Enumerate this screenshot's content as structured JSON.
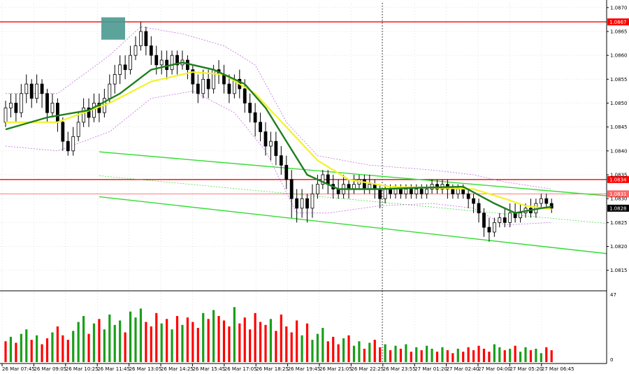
{
  "chart_data": {
    "type": "candlestick",
    "title": "",
    "price_axis": {
      "ticks": [
        "1.0870",
        "1.0865",
        "1.0860",
        "1.0855",
        "1.0850",
        "1.0845",
        "1.0840",
        "1.0835",
        "1.0830",
        "1.0825",
        "1.0820",
        "1.0815"
      ],
      "range": [
        1.0811,
        1.0871
      ]
    },
    "time_axis": {
      "labels": [
        "26 Mar 07:45",
        "26 Mar 09:05",
        "26 Mar 10:25",
        "26 Mar 11:45",
        "26 Mar 13:05",
        "26 Mar 14:25",
        "26 Mar 15:45",
        "26 Mar 17:05",
        "26 Mar 18:25",
        "26 Mar 19:45",
        "26 Mar 21:05",
        "26 Mar 22:25",
        "26 Mar 23:55",
        "27 Mar 01:20",
        "27 Mar 02:40",
        "27 Mar 04:00",
        "27 Mar 05:20",
        "27 Mar 06:45"
      ]
    },
    "horizontal_levels": [
      {
        "value": 1.0867,
        "label": "1.0867",
        "color": "#ff0000"
      },
      {
        "value": 1.0834,
        "label": "1.0834",
        "color": "#ff0000"
      },
      {
        "value": 1.0831,
        "label": "1.0831",
        "color": "#ff6666"
      }
    ],
    "current_price": {
      "value": 1.0828,
      "label": "1.0828"
    },
    "volume_axis": {
      "ticks": [
        "47",
        "0"
      ],
      "max": 47
    },
    "colors": {
      "bull_volume": "#1a9e1a",
      "bear_volume": "#ff0000",
      "ma_fast": "#1e7f1e",
      "ma_slow": "#f2f22a",
      "channel": "#33dd33",
      "envelope": "#c070e0",
      "marker": "#4a9a90"
    },
    "channel": {
      "upper": [
        {
          "t": 18,
          "v": 1.08398
        },
        {
          "t": 141,
          "v": 1.08306
        }
      ],
      "lower": [
        {
          "t": 18,
          "v": 1.08304
        },
        {
          "t": 141,
          "v": 1.08185
        }
      ],
      "mid_dotted": [
        {
          "t": 18,
          "v": 1.08348
        },
        {
          "t": 141,
          "v": 1.08248
        }
      ]
    },
    "candles": [
      [
        1.0846,
        1.0849,
        1.0845,
        1.08505
      ],
      [
        1.0849,
        1.085,
        1.0847,
        1.0852
      ],
      [
        1.085,
        1.0848,
        1.0846,
        1.0852
      ],
      [
        1.0848,
        1.0852,
        1.0847,
        1.0854
      ],
      [
        1.0852,
        1.0854,
        1.085,
        1.0856
      ],
      [
        1.0854,
        1.0851,
        1.0849,
        1.0855
      ],
      [
        1.0851,
        1.0854,
        1.085,
        1.0856
      ],
      [
        1.0854,
        1.0852,
        1.0849,
        1.0855
      ],
      [
        1.0852,
        1.0848,
        1.0846,
        1.0853
      ],
      [
        1.0848,
        1.085,
        1.0847,
        1.0852
      ],
      [
        1.085,
        1.0846,
        1.0844,
        1.0851
      ],
      [
        1.0846,
        1.0842,
        1.084,
        1.0847
      ],
      [
        1.0842,
        1.084,
        1.0839,
        1.0844
      ],
      [
        1.084,
        1.0843,
        1.0839,
        1.0845
      ],
      [
        1.0843,
        1.0846,
        1.0842,
        1.0848
      ],
      [
        1.0846,
        1.0849,
        1.0845,
        1.0851
      ],
      [
        1.0849,
        1.0847,
        1.0845,
        1.0851
      ],
      [
        1.0847,
        1.085,
        1.0846,
        1.0852
      ],
      [
        1.085,
        1.0848,
        1.0846,
        1.0852
      ],
      [
        1.0848,
        1.0851,
        1.0847,
        1.0853
      ],
      [
        1.0851,
        1.0854,
        1.085,
        1.0856
      ],
      [
        1.0854,
        1.0856,
        1.0852,
        1.0858
      ],
      [
        1.0856,
        1.0858,
        1.0854,
        1.086
      ],
      [
        1.0858,
        1.0857,
        1.0855,
        1.086
      ],
      [
        1.0857,
        1.086,
        1.0856,
        1.0862
      ],
      [
        1.086,
        1.0862,
        1.0859,
        1.0864
      ],
      [
        1.0862,
        1.0865,
        1.0861,
        1.0867
      ],
      [
        1.0865,
        1.0862,
        1.086,
        1.0866
      ],
      [
        1.0862,
        1.086,
        1.0858,
        1.0864
      ],
      [
        1.086,
        1.0858,
        1.0856,
        1.0862
      ],
      [
        1.0858,
        1.0859,
        1.0856,
        1.0861
      ],
      [
        1.0859,
        1.0857,
        1.0855,
        1.0861
      ],
      [
        1.0857,
        1.086,
        1.0856,
        1.0861
      ],
      [
        1.086,
        1.0858,
        1.0856,
        1.0861
      ],
      [
        1.0858,
        1.0859,
        1.0857,
        1.0861
      ],
      [
        1.0859,
        1.0857,
        1.0855,
        1.086
      ],
      [
        1.0857,
        1.0854,
        1.0852,
        1.0858
      ],
      [
        1.0854,
        1.0852,
        1.085,
        1.0856
      ],
      [
        1.0852,
        1.0855,
        1.0851,
        1.0857
      ],
      [
        1.0855,
        1.0853,
        1.0851,
        1.0857
      ],
      [
        1.0853,
        1.0857,
        1.0852,
        1.0858
      ],
      [
        1.0857,
        1.0856,
        1.0854,
        1.0859
      ],
      [
        1.0856,
        1.0854,
        1.0852,
        1.0858
      ],
      [
        1.0854,
        1.0852,
        1.085,
        1.0856
      ],
      [
        1.0852,
        1.0855,
        1.0851,
        1.0856
      ],
      [
        1.0855,
        1.0853,
        1.0851,
        1.0857
      ],
      [
        1.0853,
        1.085,
        1.0848,
        1.0855
      ],
      [
        1.085,
        1.0848,
        1.0846,
        1.0852
      ],
      [
        1.0848,
        1.0846,
        1.0843,
        1.085
      ],
      [
        1.0846,
        1.0844,
        1.0842,
        1.0848
      ],
      [
        1.0844,
        1.0841,
        1.0839,
        1.0846
      ],
      [
        1.0841,
        1.0842,
        1.0838,
        1.0844
      ],
      [
        1.0842,
        1.0839,
        1.0837,
        1.0844
      ],
      [
        1.0839,
        1.0837,
        1.0835,
        1.0841
      ],
      [
        1.0837,
        1.0834,
        1.0832,
        1.0839
      ],
      [
        1.0834,
        1.083,
        1.0826,
        1.0836
      ],
      [
        1.083,
        1.0828,
        1.0825,
        1.0832
      ],
      [
        1.0828,
        1.083,
        1.0826,
        1.0832
      ],
      [
        1.083,
        1.0828,
        1.0825,
        1.0831
      ],
      [
        1.0828,
        1.0831,
        1.0826,
        1.0833
      ],
      [
        1.0831,
        1.0833,
        1.083,
        1.0835
      ],
      [
        1.0833,
        1.0835,
        1.0832,
        1.0836
      ],
      [
        1.0835,
        1.0833,
        1.0831,
        1.0836
      ],
      [
        1.0833,
        1.0832,
        1.083,
        1.0835
      ],
      [
        1.0832,
        1.0831,
        1.083,
        1.0834
      ],
      [
        1.0831,
        1.0833,
        1.083,
        1.0835
      ],
      [
        1.0833,
        1.0832,
        1.083,
        1.0834
      ],
      [
        1.0832,
        1.0833,
        1.0831,
        1.0835
      ],
      [
        1.0833,
        1.0834,
        1.0832,
        1.0835
      ],
      [
        1.0834,
        1.0832,
        1.0831,
        1.0835
      ],
      [
        1.0832,
        1.0833,
        1.0831,
        1.0835
      ],
      [
        1.0833,
        1.0832,
        1.083,
        1.0834
      ],
      [
        1.0832,
        1.083,
        1.0828,
        1.0833
      ],
      [
        1.083,
        1.0832,
        1.0829,
        1.0833
      ],
      [
        1.0832,
        1.0831,
        1.083,
        1.0833
      ],
      [
        1.0831,
        1.0832,
        1.083,
        1.0833
      ],
      [
        1.0832,
        1.0831,
        1.083,
        1.0833
      ],
      [
        1.0831,
        1.0832,
        1.083,
        1.0833
      ],
      [
        1.0832,
        1.0831,
        1.083,
        1.0833
      ],
      [
        1.0831,
        1.0832,
        1.083,
        1.0833
      ],
      [
        1.0832,
        1.0831,
        1.083,
        1.0833
      ],
      [
        1.0831,
        1.0832,
        1.083,
        1.0833
      ],
      [
        1.0832,
        1.0833,
        1.0831,
        1.0834
      ],
      [
        1.0833,
        1.0832,
        1.0831,
        1.0834
      ],
      [
        1.0832,
        1.0833,
        1.0831,
        1.0834
      ],
      [
        1.0833,
        1.0832,
        1.083,
        1.0834
      ],
      [
        1.0832,
        1.0831,
        1.083,
        1.0833
      ],
      [
        1.0831,
        1.0832,
        1.083,
        1.0833
      ],
      [
        1.0832,
        1.0831,
        1.083,
        1.0833
      ],
      [
        1.0831,
        1.083,
        1.0828,
        1.0832
      ],
      [
        1.083,
        1.0829,
        1.0827,
        1.0831
      ],
      [
        1.0829,
        1.0827,
        1.0825,
        1.083
      ],
      [
        1.0827,
        1.0824,
        1.0822,
        1.0828
      ],
      [
        1.0824,
        1.0823,
        1.0821,
        1.0826
      ],
      [
        1.0823,
        1.0825,
        1.0822,
        1.0826
      ],
      [
        1.0825,
        1.0826,
        1.0824,
        1.0827
      ],
      [
        1.0826,
        1.0825,
        1.0824,
        1.0828
      ],
      [
        1.0825,
        1.0827,
        1.0824,
        1.0829
      ],
      [
        1.0827,
        1.0826,
        1.0825,
        1.0829
      ],
      [
        1.0826,
        1.0827,
        1.0825,
        1.0829
      ],
      [
        1.0827,
        1.0828,
        1.0826,
        1.0829
      ],
      [
        1.0828,
        1.0827,
        1.0826,
        1.083
      ],
      [
        1.0827,
        1.0829,
        1.0826,
        1.083
      ],
      [
        1.0829,
        1.083,
        1.0828,
        1.0831
      ],
      [
        1.083,
        1.0829,
        1.0828,
        1.0831
      ],
      [
        1.0829,
        1.0828,
        1.0827,
        1.083
      ]
    ],
    "volumes": [
      14,
      17,
      13,
      19,
      22,
      15,
      18,
      12,
      16,
      20,
      24,
      18,
      15,
      21,
      27,
      31,
      19,
      26,
      29,
      22,
      32,
      25,
      28,
      20,
      34,
      30,
      36,
      27,
      24,
      33,
      26,
      29,
      22,
      31,
      25,
      30,
      27,
      23,
      33,
      29,
      35,
      31,
      28,
      24,
      37,
      26,
      30,
      22,
      33,
      27,
      25,
      29,
      21,
      32,
      24,
      20,
      28,
      18,
      26,
      15,
      19,
      23,
      14,
      17,
      12,
      16,
      18,
      11,
      14,
      9,
      13,
      15,
      10,
      12,
      8,
      11,
      9,
      12,
      7,
      10,
      8,
      11,
      9,
      7,
      10,
      8,
      6,
      9,
      7,
      10,
      8,
      11,
      9,
      7,
      12,
      10,
      8,
      9,
      11,
      7,
      10,
      8,
      9,
      6,
      10,
      8
    ],
    "volume_up": [
      0,
      1,
      0,
      1,
      1,
      0,
      1,
      0,
      0,
      1,
      0,
      0,
      0,
      1,
      1,
      1,
      0,
      1,
      0,
      1,
      1,
      1,
      1,
      0,
      1,
      1,
      1,
      0,
      0,
      0,
      1,
      0,
      1,
      0,
      1,
      0,
      0,
      0,
      1,
      0,
      1,
      0,
      0,
      0,
      1,
      0,
      0,
      0,
      0,
      0,
      0,
      1,
      0,
      0,
      0,
      0,
      0,
      1,
      0,
      1,
      1,
      1,
      0,
      0,
      0,
      1,
      0,
      1,
      1,
      0,
      1,
      0,
      0,
      1,
      0,
      1,
      0,
      1,
      0,
      1,
      0,
      1,
      1,
      0,
      1,
      0,
      0,
      1,
      0,
      0,
      0,
      0,
      0,
      0,
      1,
      1,
      0,
      1,
      0,
      1,
      1,
      0,
      1,
      1,
      0,
      0
    ],
    "ma_fast_points": [
      [
        0,
        1.08445
      ],
      [
        8,
        1.0847
      ],
      [
        16,
        1.08485
      ],
      [
        22,
        1.0852
      ],
      [
        28,
        1.0857
      ],
      [
        34,
        1.08585
      ],
      [
        40,
        1.0857
      ],
      [
        46,
        1.0854
      ],
      [
        50,
        1.0849
      ],
      [
        54,
        1.0842
      ],
      [
        58,
        1.0835
      ],
      [
        64,
        1.0832
      ],
      [
        72,
        1.0832
      ],
      [
        80,
        1.08323
      ],
      [
        88,
        1.08325
      ],
      [
        94,
        1.0829
      ],
      [
        98,
        1.0827
      ],
      [
        103,
        1.0828
      ],
      [
        105,
        1.08283
      ]
    ],
    "ma_slow_points": [
      [
        0,
        1.0846
      ],
      [
        10,
        1.0846
      ],
      [
        20,
        1.085
      ],
      [
        28,
        1.08545
      ],
      [
        36,
        1.08565
      ],
      [
        42,
        1.0856
      ],
      [
        48,
        1.0852
      ],
      [
        54,
        1.0845
      ],
      [
        60,
        1.0838
      ],
      [
        66,
        1.0834
      ],
      [
        74,
        1.08325
      ],
      [
        82,
        1.08323
      ],
      [
        90,
        1.0832
      ],
      [
        96,
        1.083
      ],
      [
        100,
        1.08285
      ],
      [
        105,
        1.08278
      ]
    ],
    "envelope_upper": [
      [
        0,
        1.0852
      ],
      [
        10,
        1.0852
      ],
      [
        20,
        1.086
      ],
      [
        26,
        1.0866
      ],
      [
        34,
        1.08645
      ],
      [
        42,
        1.0862
      ],
      [
        48,
        1.0858
      ],
      [
        54,
        1.0846
      ],
      [
        60,
        1.0839
      ],
      [
        70,
        1.0837
      ],
      [
        82,
        1.0836
      ],
      [
        90,
        1.0835
      ],
      [
        96,
        1.08335
      ],
      [
        105,
        1.0832
      ]
    ],
    "envelope_lower": [
      [
        0,
        1.0841
      ],
      [
        10,
        1.084
      ],
      [
        20,
        1.0844
      ],
      [
        28,
        1.0851
      ],
      [
        36,
        1.08525
      ],
      [
        44,
        1.0848
      ],
      [
        50,
        1.084
      ],
      [
        56,
        1.0827
      ],
      [
        62,
        1.0827
      ],
      [
        72,
        1.08285
      ],
      [
        82,
        1.0829
      ],
      [
        90,
        1.0828
      ],
      [
        96,
        1.08245
      ],
      [
        105,
        1.0825
      ]
    ],
    "marker_value": 1.08665
  }
}
